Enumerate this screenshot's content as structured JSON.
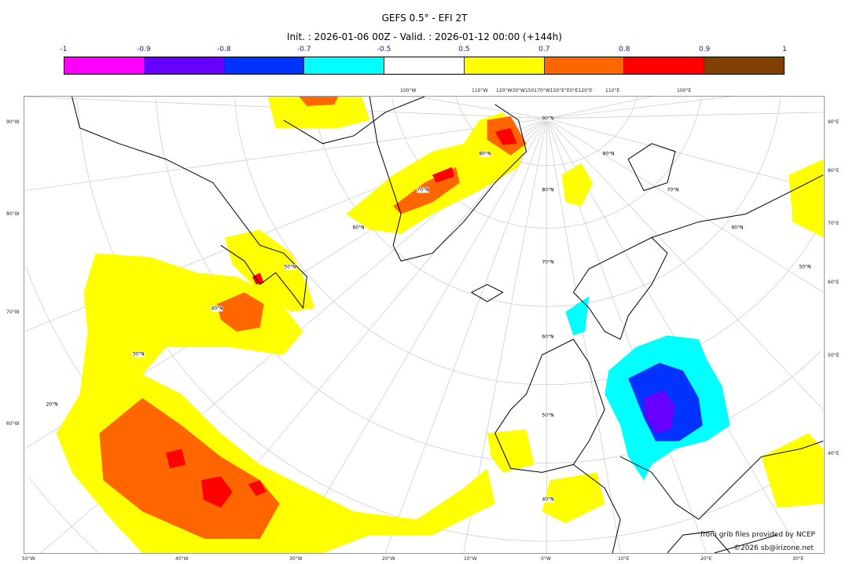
{
  "title": "GEFS 0.5° - EFI 2T",
  "subtitle": "Init. : 2026-01-06 00Z - Valid. : 2026-01-12 00:00 (+144h)",
  "colorbar": {
    "ticks": [
      "-1",
      "-0.9",
      "-0.8",
      "-0.7",
      "-0.5",
      "0.5",
      "0.7",
      "0.8",
      "0.9",
      "1"
    ],
    "colors": [
      "#ff00ff",
      "#6600ff",
      "#0033ff",
      "#00ffff",
      "#ffffff",
      "#ffff00",
      "#ff6600",
      "#ff0000",
      "#804000"
    ]
  },
  "axes": {
    "left": [
      "90°W",
      "80°W",
      "70°W",
      "60°W"
    ],
    "right": [
      "90°E",
      "80°E",
      "70°E",
      "60°E",
      "50°E",
      "40°E"
    ],
    "bottom": [
      "50°W",
      "40°W",
      "30°W",
      "20°W",
      "10°W",
      "0°W",
      "10°E",
      "20°E",
      "30°E"
    ],
    "top": [
      "100°W",
      "110°W",
      "120°W30°W150170°W150°E°E0°E120°E",
      "110°E",
      "100°E"
    ]
  },
  "grid_labels": [
    "90°N",
    "80°N",
    "70°N",
    "60°N",
    "50°N",
    "40°N",
    "30°N",
    "20°N",
    "80°N",
    "70°N",
    "60°N",
    "50°N",
    "40°N",
    "80°N",
    "70°N",
    "60°N",
    "50°N"
  ],
  "credits": {
    "source": "from grib files provided by NCEP",
    "copyright": "©2026 sb@irizone.net"
  }
}
